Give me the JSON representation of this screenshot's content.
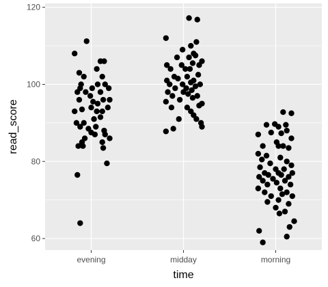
{
  "chart_data": {
    "type": "scatter",
    "xlabel": "time",
    "ylabel": "read_score",
    "categories": [
      "evening",
      "midday",
      "morning"
    ],
    "ylim": [
      57,
      121
    ],
    "y_ticks": [
      60,
      80,
      100,
      120
    ],
    "grid": true,
    "colors": {
      "panel": "#ebebeb",
      "grid": "#ffffff",
      "point": "#000000",
      "tick_text": "#4d4d4d"
    },
    "series": [
      {
        "category": "evening",
        "points": [
          [
            -0.05,
            111.2
          ],
          [
            -0.18,
            108.0
          ],
          [
            -0.13,
            103.0
          ],
          [
            -0.08,
            102.0
          ],
          [
            0.1,
            106.0
          ],
          [
            0.14,
            106.0
          ],
          [
            0.06,
            104.0
          ],
          [
            -0.11,
            100.0
          ],
          [
            0.12,
            102.0
          ],
          [
            -0.15,
            98.0
          ],
          [
            -0.12,
            99.0
          ],
          [
            -0.06,
            98.0
          ],
          [
            0.01,
            99.0
          ],
          [
            0.07,
            100.0
          ],
          [
            0.15,
            100.0
          ],
          [
            -0.01,
            97.0
          ],
          [
            0.1,
            98.0
          ],
          [
            0.19,
            99.0
          ],
          [
            -0.13,
            96.0
          ],
          [
            0.02,
            95.5
          ],
          [
            0.07,
            95.0
          ],
          [
            0.13,
            96.0
          ],
          [
            0.2,
            96.0
          ],
          [
            -0.18,
            93.0
          ],
          [
            -0.1,
            93.5
          ],
          [
            0.0,
            94.0
          ],
          [
            0.06,
            93.0
          ],
          [
            0.12,
            93.0
          ],
          [
            0.18,
            94.0
          ],
          [
            -0.16,
            90.0
          ],
          [
            -0.08,
            90.0
          ],
          [
            0.03,
            91.0
          ],
          [
            0.1,
            91.5
          ],
          [
            -0.12,
            89.0
          ],
          [
            0.05,
            89.0
          ],
          [
            -0.03,
            88.5
          ],
          [
            0.14,
            88.0
          ],
          [
            0.0,
            87.5
          ],
          [
            0.04,
            87.0
          ],
          [
            0.15,
            87.0
          ],
          [
            -0.07,
            86.0
          ],
          [
            0.2,
            86.0
          ],
          [
            -0.1,
            85.0
          ],
          [
            0.12,
            85.0
          ],
          [
            -0.14,
            84.0
          ],
          [
            -0.09,
            84.0
          ],
          [
            0.13,
            83.5
          ],
          [
            0.17,
            79.5
          ],
          [
            -0.15,
            76.5
          ],
          [
            -0.12,
            64.0
          ]
        ]
      },
      {
        "category": "midday",
        "points": [
          [
            -0.19,
            112.0
          ],
          [
            0.06,
            117.2
          ],
          [
            0.15,
            116.8
          ],
          [
            0.14,
            111.0
          ],
          [
            0.08,
            110.0
          ],
          [
            -0.01,
            109.0
          ],
          [
            0.11,
            108.0
          ],
          [
            -0.07,
            107.0
          ],
          [
            0.06,
            107.0
          ],
          [
            0.13,
            107.5
          ],
          [
            0.2,
            106.0
          ],
          [
            -0.18,
            105.0
          ],
          [
            -0.02,
            105.0
          ],
          [
            0.1,
            105.5
          ],
          [
            0.17,
            105.0
          ],
          [
            -0.14,
            104.0
          ],
          [
            0.02,
            104.0
          ],
          [
            0.07,
            104.0
          ],
          [
            -0.1,
            102.0
          ],
          [
            0.04,
            102.0
          ],
          [
            0.16,
            102.5
          ],
          [
            -0.18,
            101.0
          ],
          [
            -0.06,
            101.5
          ],
          [
            0.11,
            101.0
          ],
          [
            -0.15,
            100.0
          ],
          [
            -0.01,
            100.0
          ],
          [
            0.08,
            100.5
          ],
          [
            0.18,
            100.0
          ],
          [
            -0.09,
            99.0
          ],
          [
            0.03,
            99.0
          ],
          [
            0.13,
            99.5
          ],
          [
            -0.17,
            98.0
          ],
          [
            0.0,
            98.0
          ],
          [
            0.09,
            98.5
          ],
          [
            -0.12,
            97.0
          ],
          [
            0.05,
            97.5
          ],
          [
            0.15,
            97.0
          ],
          [
            -0.19,
            95.5
          ],
          [
            -0.04,
            96.0
          ],
          [
            0.1,
            96.5
          ],
          [
            0.2,
            95.0
          ],
          [
            -0.13,
            94.0
          ],
          [
            0.04,
            94.0
          ],
          [
            0.17,
            94.5
          ],
          [
            0.08,
            93.0
          ],
          [
            0.11,
            92.0
          ],
          [
            -0.05,
            91.0
          ],
          [
            0.14,
            91.0
          ],
          [
            0.19,
            90.0
          ],
          [
            0.2,
            89.0
          ],
          [
            -0.11,
            88.5
          ],
          [
            -0.19,
            87.8
          ]
        ]
      },
      {
        "category": "morning",
        "points": [
          [
            -0.01,
            89.7
          ],
          [
            -0.1,
            89.5
          ],
          [
            0.08,
            92.8
          ],
          [
            0.17,
            92.5
          ],
          [
            0.03,
            89.0
          ],
          [
            0.11,
            89.5
          ],
          [
            -0.05,
            87.5
          ],
          [
            0.06,
            87.3
          ],
          [
            0.12,
            88.0
          ],
          [
            -0.19,
            87.0
          ],
          [
            0.17,
            86.0
          ],
          [
            0.01,
            85.0
          ],
          [
            -0.14,
            84.0
          ],
          [
            0.03,
            84.0
          ],
          [
            0.08,
            84.0
          ],
          [
            0.14,
            83.5
          ],
          [
            -0.19,
            82.0
          ],
          [
            -0.1,
            81.5
          ],
          [
            0.05,
            81.0
          ],
          [
            -0.15,
            80.5
          ],
          [
            0.12,
            80.0
          ],
          [
            -0.06,
            79.5
          ],
          [
            0.17,
            79.0
          ],
          [
            -0.17,
            78.5
          ],
          [
            0.0,
            78.0
          ],
          [
            0.09,
            78.0
          ],
          [
            -0.12,
            77.0
          ],
          [
            0.03,
            77.0
          ],
          [
            0.18,
            77.0
          ],
          [
            -0.08,
            76.5
          ],
          [
            0.06,
            76.5
          ],
          [
            -0.18,
            76.0
          ],
          [
            0.14,
            76.0
          ],
          [
            -0.03,
            75.5
          ],
          [
            0.1,
            75.0
          ],
          [
            -0.14,
            75.0
          ],
          [
            0.01,
            74.5
          ],
          [
            -0.09,
            74.0
          ],
          [
            0.16,
            74.0
          ],
          [
            -0.19,
            73.0
          ],
          [
            0.05,
            73.0
          ],
          [
            -0.12,
            72.0
          ],
          [
            0.12,
            72.0
          ],
          [
            -0.05,
            71.0
          ],
          [
            0.07,
            71.5
          ],
          [
            0.18,
            71.0
          ],
          [
            0.03,
            70.0
          ],
          [
            -0.09,
            69.5
          ],
          [
            0.14,
            69.0
          ],
          [
            0.0,
            68.0
          ],
          [
            0.1,
            67.0
          ],
          [
            0.04,
            66.5
          ],
          [
            0.2,
            64.5
          ],
          [
            0.15,
            63.0
          ],
          [
            -0.18,
            62.0
          ],
          [
            0.12,
            60.5
          ],
          [
            -0.14,
            59.0
          ]
        ]
      }
    ]
  }
}
